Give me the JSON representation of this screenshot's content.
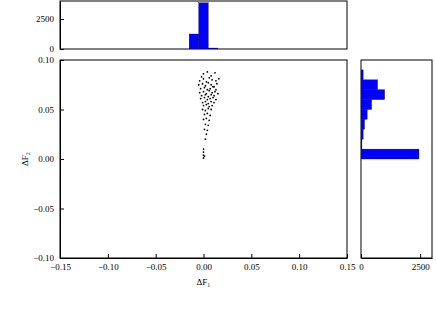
{
  "chart_data": [
    {
      "type": "scatter",
      "xlabel": "ΔF₁",
      "ylabel": "ΔF₂",
      "color": "#000000",
      "marker": "circle",
      "xlim": [
        -0.15,
        0.15
      ],
      "xticks": [
        {
          "value": -0.15,
          "label": "−0.15"
        },
        {
          "value": -0.1,
          "label": "−0.10"
        },
        {
          "value": -0.05,
          "label": "−0.05"
        },
        {
          "value": 0,
          "label": "0.00"
        },
        {
          "value": 0.05,
          "label": "0.05"
        },
        {
          "value": 0.1,
          "label": "0.10"
        },
        {
          "value": 0.15,
          "label": "0.15"
        }
      ],
      "ylim": [
        -0.1,
        0.1
      ],
      "yticks": [
        {
          "value": -0.1,
          "label": "−0.10"
        },
        {
          "value": -0.05,
          "label": "−0.05"
        },
        {
          "value": 0,
          "label": "0.00"
        },
        {
          "value": 0.05,
          "label": "0.05"
        },
        {
          "value": 0.1,
          "label": "0.10"
        }
      ],
      "x": [
        0,
        0.004,
        0.008,
        0.012,
        -0.002,
        -0.004,
        0,
        0.003,
        0.006,
        0.009,
        0.013,
        0.016,
        -0.005,
        -0.001,
        0.002,
        0.005,
        0.008,
        0.011,
        0.014,
        -0.003,
        0.001,
        0.004,
        0.007,
        0.01,
        0.013,
        -0.004,
        0,
        0.003,
        0.006,
        0.009,
        0.012,
        0.015,
        -0.002,
        0.002,
        0.005,
        0.008,
        0.011,
        -0.003,
        0.001,
        0.004,
        0.007,
        0.01,
        0.013,
        -0.001,
        0.002,
        0.005,
        0.008,
        0.011,
        0,
        0.003,
        0.006,
        0.009,
        -0.001,
        0.002,
        0.005,
        0.008,
        0.001,
        0.004,
        0.007,
        0,
        0.003,
        0.006,
        0.002,
        0.005,
        0.001,
        0.004,
        0.003,
        0.002,
        0,
        0,
        0,
        0.001,
        0
      ],
      "values": [
        0.086,
        0.088,
        0.084,
        0.087,
        0.083,
        0.079,
        0.081,
        0.078,
        0.082,
        0.08,
        0.079,
        0.081,
        0.075,
        0.076,
        0.074,
        0.077,
        0.075,
        0.073,
        0.076,
        0.071,
        0.072,
        0.07,
        0.071,
        0.073,
        0.07,
        0.067,
        0.068,
        0.066,
        0.069,
        0.067,
        0.068,
        0.066,
        0.064,
        0.065,
        0.063,
        0.065,
        0.064,
        0.061,
        0.062,
        0.06,
        0.061,
        0.062,
        0.06,
        0.057,
        0.058,
        0.056,
        0.058,
        0.057,
        0.054,
        0.055,
        0.053,
        0.054,
        0.05,
        0.049,
        0.051,
        0.05,
        0.045,
        0.046,
        0.044,
        0.04,
        0.041,
        0.039,
        0.035,
        0.034,
        0.03,
        0.029,
        0.025,
        0.02,
        0.01,
        0.007,
        0.004,
        0.003,
        0.001
      ]
    },
    {
      "type": "histogram",
      "color": "#0000ff",
      "tick_labels": "y",
      "bins": [
        -0.015,
        -0.005,
        0.005,
        0.015
      ],
      "values": [
        1250,
        3850,
        80
      ],
      "xlim": [
        -0.15,
        0.15
      ],
      "ylim": [
        0,
        4000
      ],
      "yticks": [
        0,
        2500
      ]
    },
    {
      "type": "histogram",
      "orientation": "horizontal",
      "color": "#0000ff",
      "tick_labels": "x",
      "bins": [
        0,
        0.01,
        0.02,
        0.03,
        0.04,
        0.05,
        0.06,
        0.07,
        0.08,
        0.09
      ],
      "values": [
        2450,
        40,
        90,
        150,
        260,
        450,
        1000,
        700,
        90
      ],
      "ylim": [
        -0.1,
        0.1
      ],
      "xlim": [
        0,
        3000
      ],
      "xticks": [
        0,
        2500
      ]
    }
  ]
}
